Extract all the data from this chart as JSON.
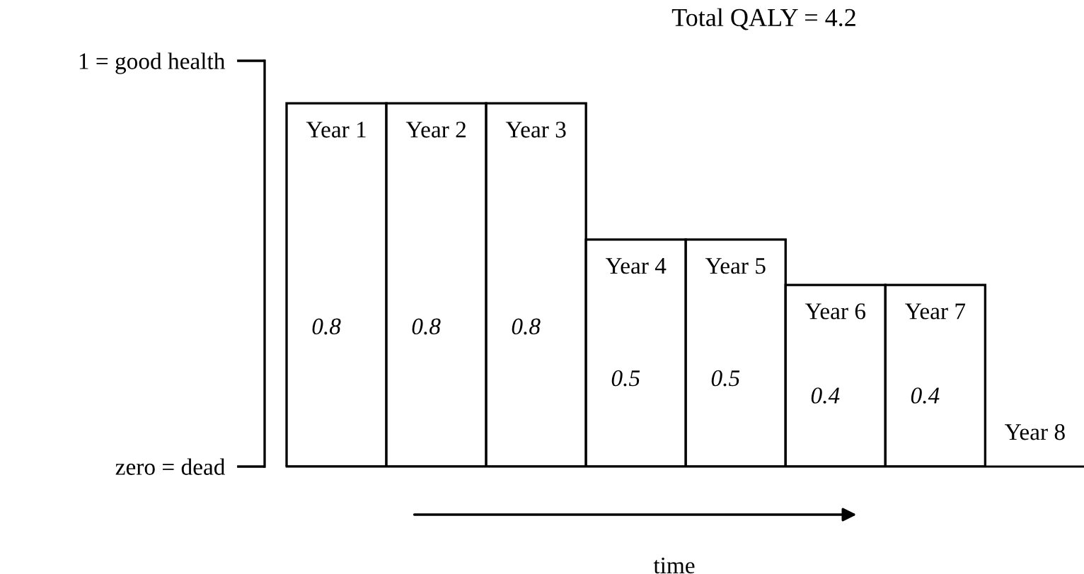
{
  "chart_data": {
    "type": "bar",
    "categories": [
      "Year 1",
      "Year 2",
      "Year 3",
      "Year 4",
      "Year 5",
      "Year 6",
      "Year 7",
      "Year 8"
    ],
    "values": [
      0.8,
      0.8,
      0.8,
      0.5,
      0.5,
      0.4,
      0.4,
      0
    ],
    "value_labels": [
      "0.8",
      "0.8",
      "0.8",
      "0.5",
      "0.5",
      "0.4",
      "0.4",
      null
    ],
    "color": "#ffffff",
    "xlabel": "time",
    "annotations": [
      "Total QALY = 4.2",
      "zero = dead",
      "1 = good health"
    ],
    "grid": false
  }
}
